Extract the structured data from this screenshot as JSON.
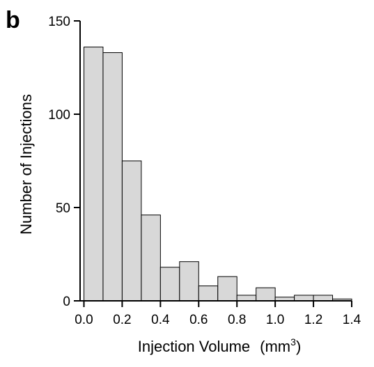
{
  "panel_label": "b",
  "chart_data": {
    "type": "bar",
    "title": "",
    "xlabel": "Injection Volume",
    "xlabel_unit_base": "(mm",
    "xlabel_unit_exp": "3",
    "xlabel_unit_close": ")",
    "ylabel": "Number of Injections",
    "bin_width": 0.1,
    "bin_edges": [
      0.0,
      0.1,
      0.2,
      0.3,
      0.4,
      0.5,
      0.6,
      0.7,
      0.8,
      0.9,
      1.0,
      1.1,
      1.2,
      1.3,
      1.4
    ],
    "values": [
      136,
      133,
      75,
      46,
      18,
      21,
      8,
      13,
      3,
      7,
      2,
      3,
      3,
      1
    ],
    "xlim": [
      -0.02,
      1.4
    ],
    "ylim": [
      0,
      150
    ],
    "xticks": [
      "0.0",
      "0.2",
      "0.4",
      "0.6",
      "0.8",
      "1.0",
      "1.2",
      "1.4"
    ],
    "xtick_values": [
      0.0,
      0.2,
      0.4,
      0.6,
      0.8,
      1.0,
      1.2,
      1.4
    ],
    "yticks": [
      "0",
      "50",
      "100",
      "150"
    ],
    "ytick_values": [
      0,
      50,
      100,
      150
    ],
    "bar_color": "#d8d8d8",
    "grid": false,
    "legend": "none"
  }
}
